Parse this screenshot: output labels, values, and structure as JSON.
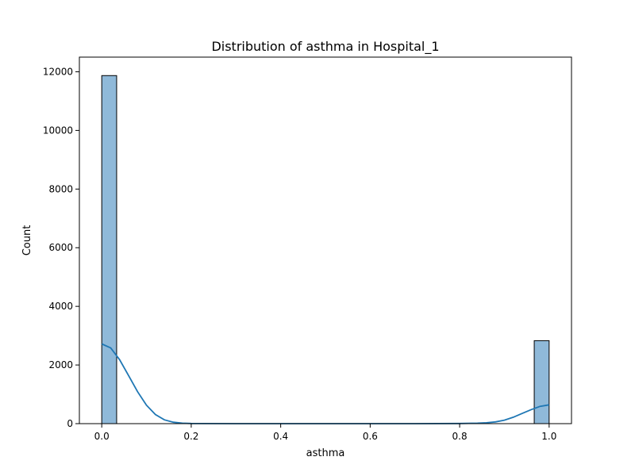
{
  "chart_data": {
    "type": "bar",
    "title": "Distribution of asthma in Hospital_1",
    "xlabel": "asthma",
    "ylabel": "Count",
    "xlim": [
      -0.05,
      1.05
    ],
    "ylim": [
      0,
      12500
    ],
    "xticks": [
      0.0,
      0.2,
      0.4,
      0.6,
      0.8,
      1.0
    ],
    "xtick_labels": [
      "0.0",
      "0.2",
      "0.4",
      "0.6",
      "0.8",
      "1.0"
    ],
    "yticks": [
      0,
      2000,
      4000,
      6000,
      8000,
      10000,
      12000
    ],
    "ytick_labels": [
      "0",
      "2000",
      "4000",
      "6000",
      "8000",
      "10000",
      "12000"
    ],
    "grid": false,
    "bins": [
      {
        "x0": 0.0,
        "x1": 0.0333,
        "count": 11870
      },
      {
        "x0": 0.9667,
        "x1": 1.0,
        "count": 2830
      }
    ],
    "kde": {
      "x": [
        0.0,
        0.02,
        0.04,
        0.06,
        0.08,
        0.1,
        0.12,
        0.14,
        0.16,
        0.18,
        0.2,
        0.3,
        0.5,
        0.7,
        0.8,
        0.84,
        0.86,
        0.88,
        0.9,
        0.92,
        0.94,
        0.96,
        0.98,
        1.0
      ],
      "y": [
        2720,
        2580,
        2180,
        1640,
        1090,
        630,
        310,
        130,
        50,
        15,
        5,
        0,
        0,
        0,
        5,
        15,
        30,
        60,
        120,
        220,
        350,
        480,
        590,
        640
      ]
    },
    "colors": {
      "bar_fill": "#8fb9d9",
      "bar_edge": "#000000",
      "kde_line": "#1f77b4"
    }
  }
}
